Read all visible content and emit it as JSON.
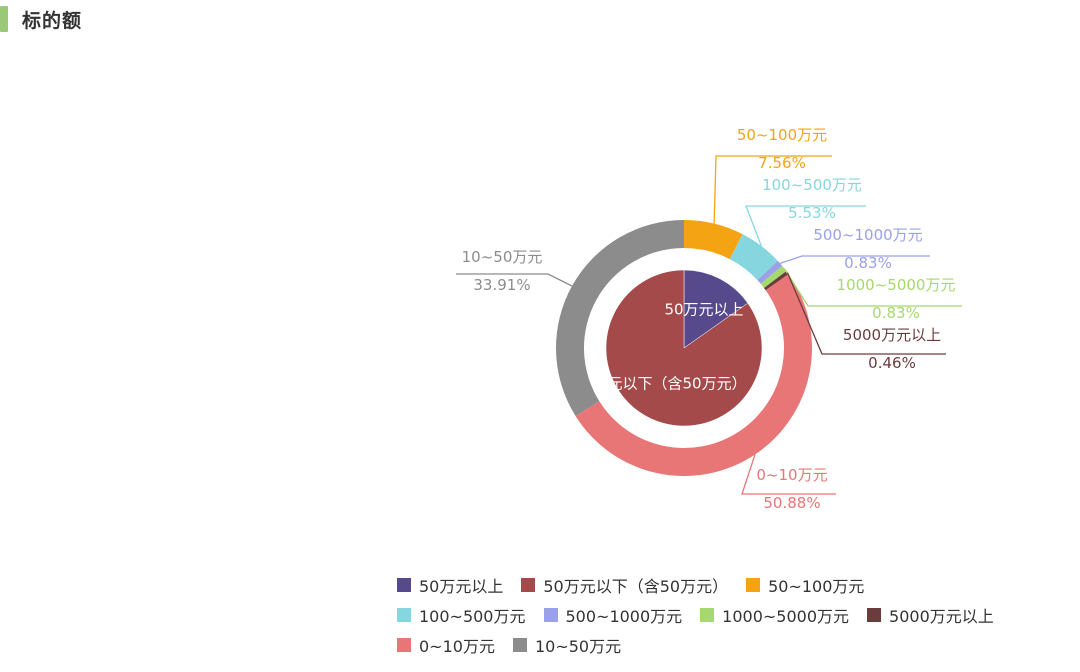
{
  "header": {
    "title": "标的额"
  },
  "chart_data": {
    "type": "pie",
    "title": "",
    "inner": {
      "kind": "pie",
      "categories": [
        "50万元以上",
        "50万元以下（含50万元）"
      ],
      "values": [
        15.25,
        84.75
      ],
      "colors": [
        "#574a8c",
        "#a44a4a"
      ]
    },
    "outer": {
      "kind": "donut",
      "categories": [
        "50~100万元",
        "100~500万元",
        "500~1000万元",
        "1000~5000万元",
        "5000万元以上",
        "0~10万元",
        "10~50万元"
      ],
      "values": [
        7.56,
        5.53,
        0.83,
        0.83,
        0.46,
        50.88,
        33.91
      ],
      "labels": [
        "7.56%",
        "5.53%",
        "0.83%",
        "0.83%",
        "0.46%",
        "50.88%",
        "33.91%"
      ],
      "colors": [
        "#f4a412",
        "#86d6df",
        "#9aa1e8",
        "#a5d86d",
        "#6b3c3c",
        "#e87676",
        "#8c8c8c"
      ]
    },
    "legend": {
      "position": "bottom",
      "rows": [
        [
          "50万元以上",
          "50万元以下（含50万元）",
          "50~100万元"
        ],
        [
          "100~500万元",
          "500~1000万元",
          "1000~5000万元",
          "5000万元以上"
        ],
        [
          "0~10万元",
          "10~50万元"
        ]
      ],
      "colors": {
        "50万元以上": "#574a8c",
        "50万元以下（含50万元）": "#a44a4a",
        "50~100万元": "#f4a412",
        "100~500万元": "#86d6df",
        "500~1000万元": "#9aa1e8",
        "1000~5000万元": "#a5d86d",
        "5000万元以上": "#6b3c3c",
        "0~10万元": "#e87676",
        "10~50万元": "#8c8c8c"
      }
    }
  }
}
